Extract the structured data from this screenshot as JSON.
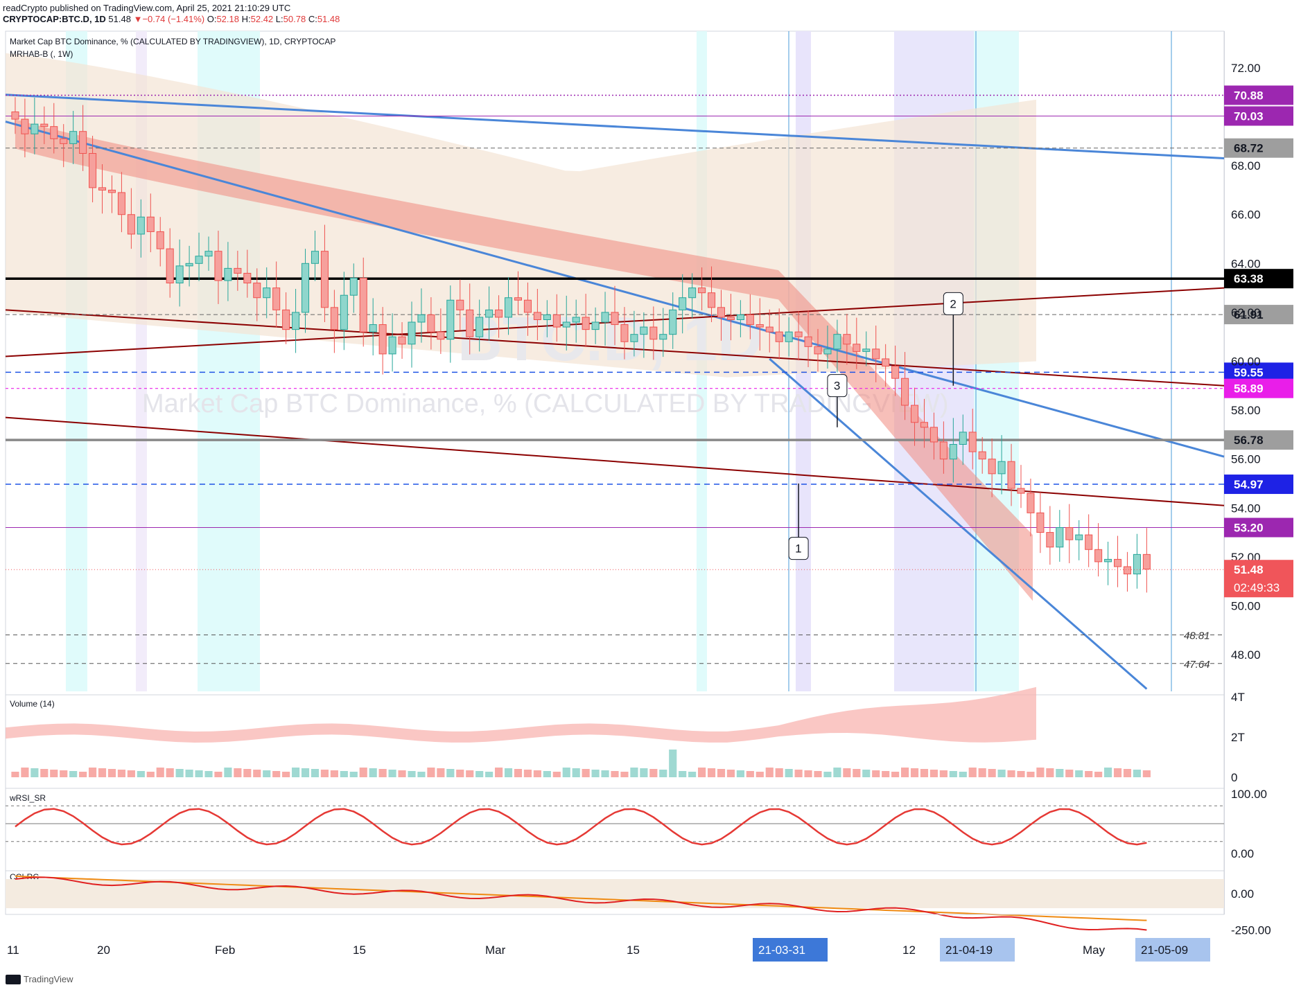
{
  "header": {
    "published": "readCrypto published on TradingView.com, April 25, 2021 21:10:29 UTC",
    "symbol": "CRYPTOCAP:BTC.D, 1D",
    "last": "51.48",
    "change_arrow": "▼",
    "change": "−0.74 (−1.41%)",
    "open_label": "O:",
    "open": "52.18",
    "high_label": "H:",
    "high": "52.42",
    "low_label": "L:",
    "low": "50.78",
    "close_label": "C:",
    "close": "51.48"
  },
  "colors": {
    "bull": "#26a69a",
    "bear": "#ef5350",
    "trendline": "#4a86d8",
    "channel": "#8b0000",
    "purple_level": "#9c27b0",
    "cloud": "#f4e4d4",
    "accent_blue": "#1e53e5",
    "red_tag": "#f0555a"
  },
  "chart_data": [
    {
      "type": "candlestick",
      "title": "Market Cap BTC Dominance, % (CALCULATED BY TRADINGVIEW), 1D, CRYPTOCAP",
      "indicator": "MRHAB-B (, 1W)",
      "watermark_symbol": "BTC.D, 1D",
      "watermark_name": "Market Cap BTC Dominance, % (CALCULATED BY TRADINGVIEW)",
      "ylim": [
        46.5,
        73.5
      ],
      "yticks": [
        48,
        50,
        52,
        54,
        56,
        58,
        60,
        62,
        64,
        66,
        68,
        72
      ],
      "xticks": [
        "11",
        "20",
        "Feb",
        "15",
        "Mar",
        "15",
        "21-03-31",
        "12",
        "21-04-19",
        "May",
        "21-05-09"
      ],
      "x_range": [
        "2021-01-10",
        "2021-05-16"
      ],
      "price_tags": [
        {
          "label": "70.88",
          "value": 70.88,
          "style": "purple-dotted"
        },
        {
          "label": "70.03",
          "value": 70.03,
          "style": "purple"
        },
        {
          "label": "68.72",
          "value": 68.72,
          "style": "gray-dashed"
        },
        {
          "label": "63.38",
          "value": 63.38,
          "style": "black"
        },
        {
          "label": "61.91",
          "value": 61.91,
          "style": "gray-dashed"
        },
        {
          "label": "59.55",
          "value": 59.55,
          "style": "blue-dashed"
        },
        {
          "label": "58.89",
          "value": 58.89,
          "style": "magenta-dashed"
        },
        {
          "label": "56.78",
          "value": 56.78,
          "style": "gray"
        },
        {
          "label": "54.97",
          "value": 54.97,
          "style": "blue-dashed"
        },
        {
          "label": "53.20",
          "value": 53.2,
          "style": "purple"
        }
      ],
      "current_price": {
        "label": "51.48",
        "countdown": "02:49:33"
      },
      "support_labels": [
        {
          "label": "48.81",
          "value": 48.81
        },
        {
          "label": "47.64",
          "value": 47.64
        }
      ],
      "markers": [
        {
          "label": "1",
          "date": "2021-04-02"
        },
        {
          "label": "2",
          "date": "2021-04-18"
        },
        {
          "label": "3",
          "date": "2021-04-06"
        }
      ],
      "closes": [
        69.9,
        69.3,
        69.7,
        69.6,
        69.1,
        68.9,
        69.4,
        68.5,
        67.1,
        67.0,
        66.9,
        66.0,
        65.2,
        65.9,
        65.3,
        64.6,
        63.2,
        63.9,
        64.0,
        64.3,
        64.5,
        63.3,
        63.8,
        63.6,
        63.2,
        62.6,
        63.0,
        62.1,
        61.3,
        62.0,
        64.0,
        64.5,
        62.2,
        61.3,
        62.7,
        63.4,
        61.2,
        61.5,
        60.3,
        61.0,
        60.7,
        61.6,
        61.9,
        61.2,
        60.9,
        62.5,
        62.1,
        61.0,
        61.8,
        62.1,
        61.8,
        62.6,
        62.5,
        62.0,
        61.7,
        61.9,
        61.4,
        61.6,
        61.8,
        61.3,
        61.6,
        62.0,
        61.5,
        60.8,
        61.1,
        61.4,
        60.9,
        61.1,
        62.1,
        62.6,
        63.0,
        62.8,
        62.2,
        61.8,
        61.7,
        61.9,
        61.5,
        61.4,
        61.2,
        60.8,
        61.2,
        61.0,
        60.6,
        60.3,
        60.5,
        61.1,
        60.7,
        60.4,
        60.5,
        60.1,
        59.8,
        59.3,
        58.2,
        57.5,
        57.3,
        56.7,
        56.0,
        56.6,
        57.1,
        56.3,
        56.0,
        55.4,
        55.9,
        54.8,
        54.6,
        53.8,
        53.0,
        52.4,
        53.2,
        52.7,
        52.9,
        52.3,
        51.8,
        51.9,
        51.6,
        51.3,
        52.1,
        51.5
      ],
      "closes_start": "2021-01-11",
      "series_lines": [
        {
          "name": "trendline-upper",
          "from": [
            "2021-01-10",
            70.9
          ],
          "to": [
            "2021-05-16",
            68.3
          ]
        },
        {
          "name": "trendline-down",
          "from": [
            "2021-01-10",
            69.8
          ],
          "to": [
            "2021-05-16",
            56.1
          ]
        },
        {
          "name": "trendline-steep",
          "from": [
            "2021-03-30",
            60.1
          ],
          "to": [
            "2021-05-08",
            46.6
          ]
        },
        {
          "name": "channel-rising",
          "from": [
            "2021-01-10",
            60.2
          ],
          "to": [
            "2021-05-16",
            63.0
          ]
        },
        {
          "name": "channel-falling-top",
          "from": [
            "2021-01-10",
            62.1
          ],
          "to": [
            "2021-05-16",
            59.0
          ]
        },
        {
          "name": "channel-falling-bottom",
          "from": [
            "2021-01-10",
            57.7
          ],
          "to": [
            "2021-05-16",
            54.1
          ]
        }
      ]
    },
    {
      "type": "bar",
      "title": "Volume (14)",
      "yticks": [
        "4T",
        "2T",
        "0"
      ],
      "ylim": [
        0,
        4
      ]
    },
    {
      "type": "line",
      "title": "wRSI_SR",
      "yticks": [
        "100.00",
        "0.00"
      ],
      "ylim": [
        -20,
        110
      ]
    },
    {
      "type": "line",
      "title": "CCI-RC",
      "yticks": [
        "0.00",
        "-250.00"
      ],
      "ylim": [
        -290,
        150
      ]
    }
  ],
  "footer": {
    "brand": "TradingView"
  }
}
